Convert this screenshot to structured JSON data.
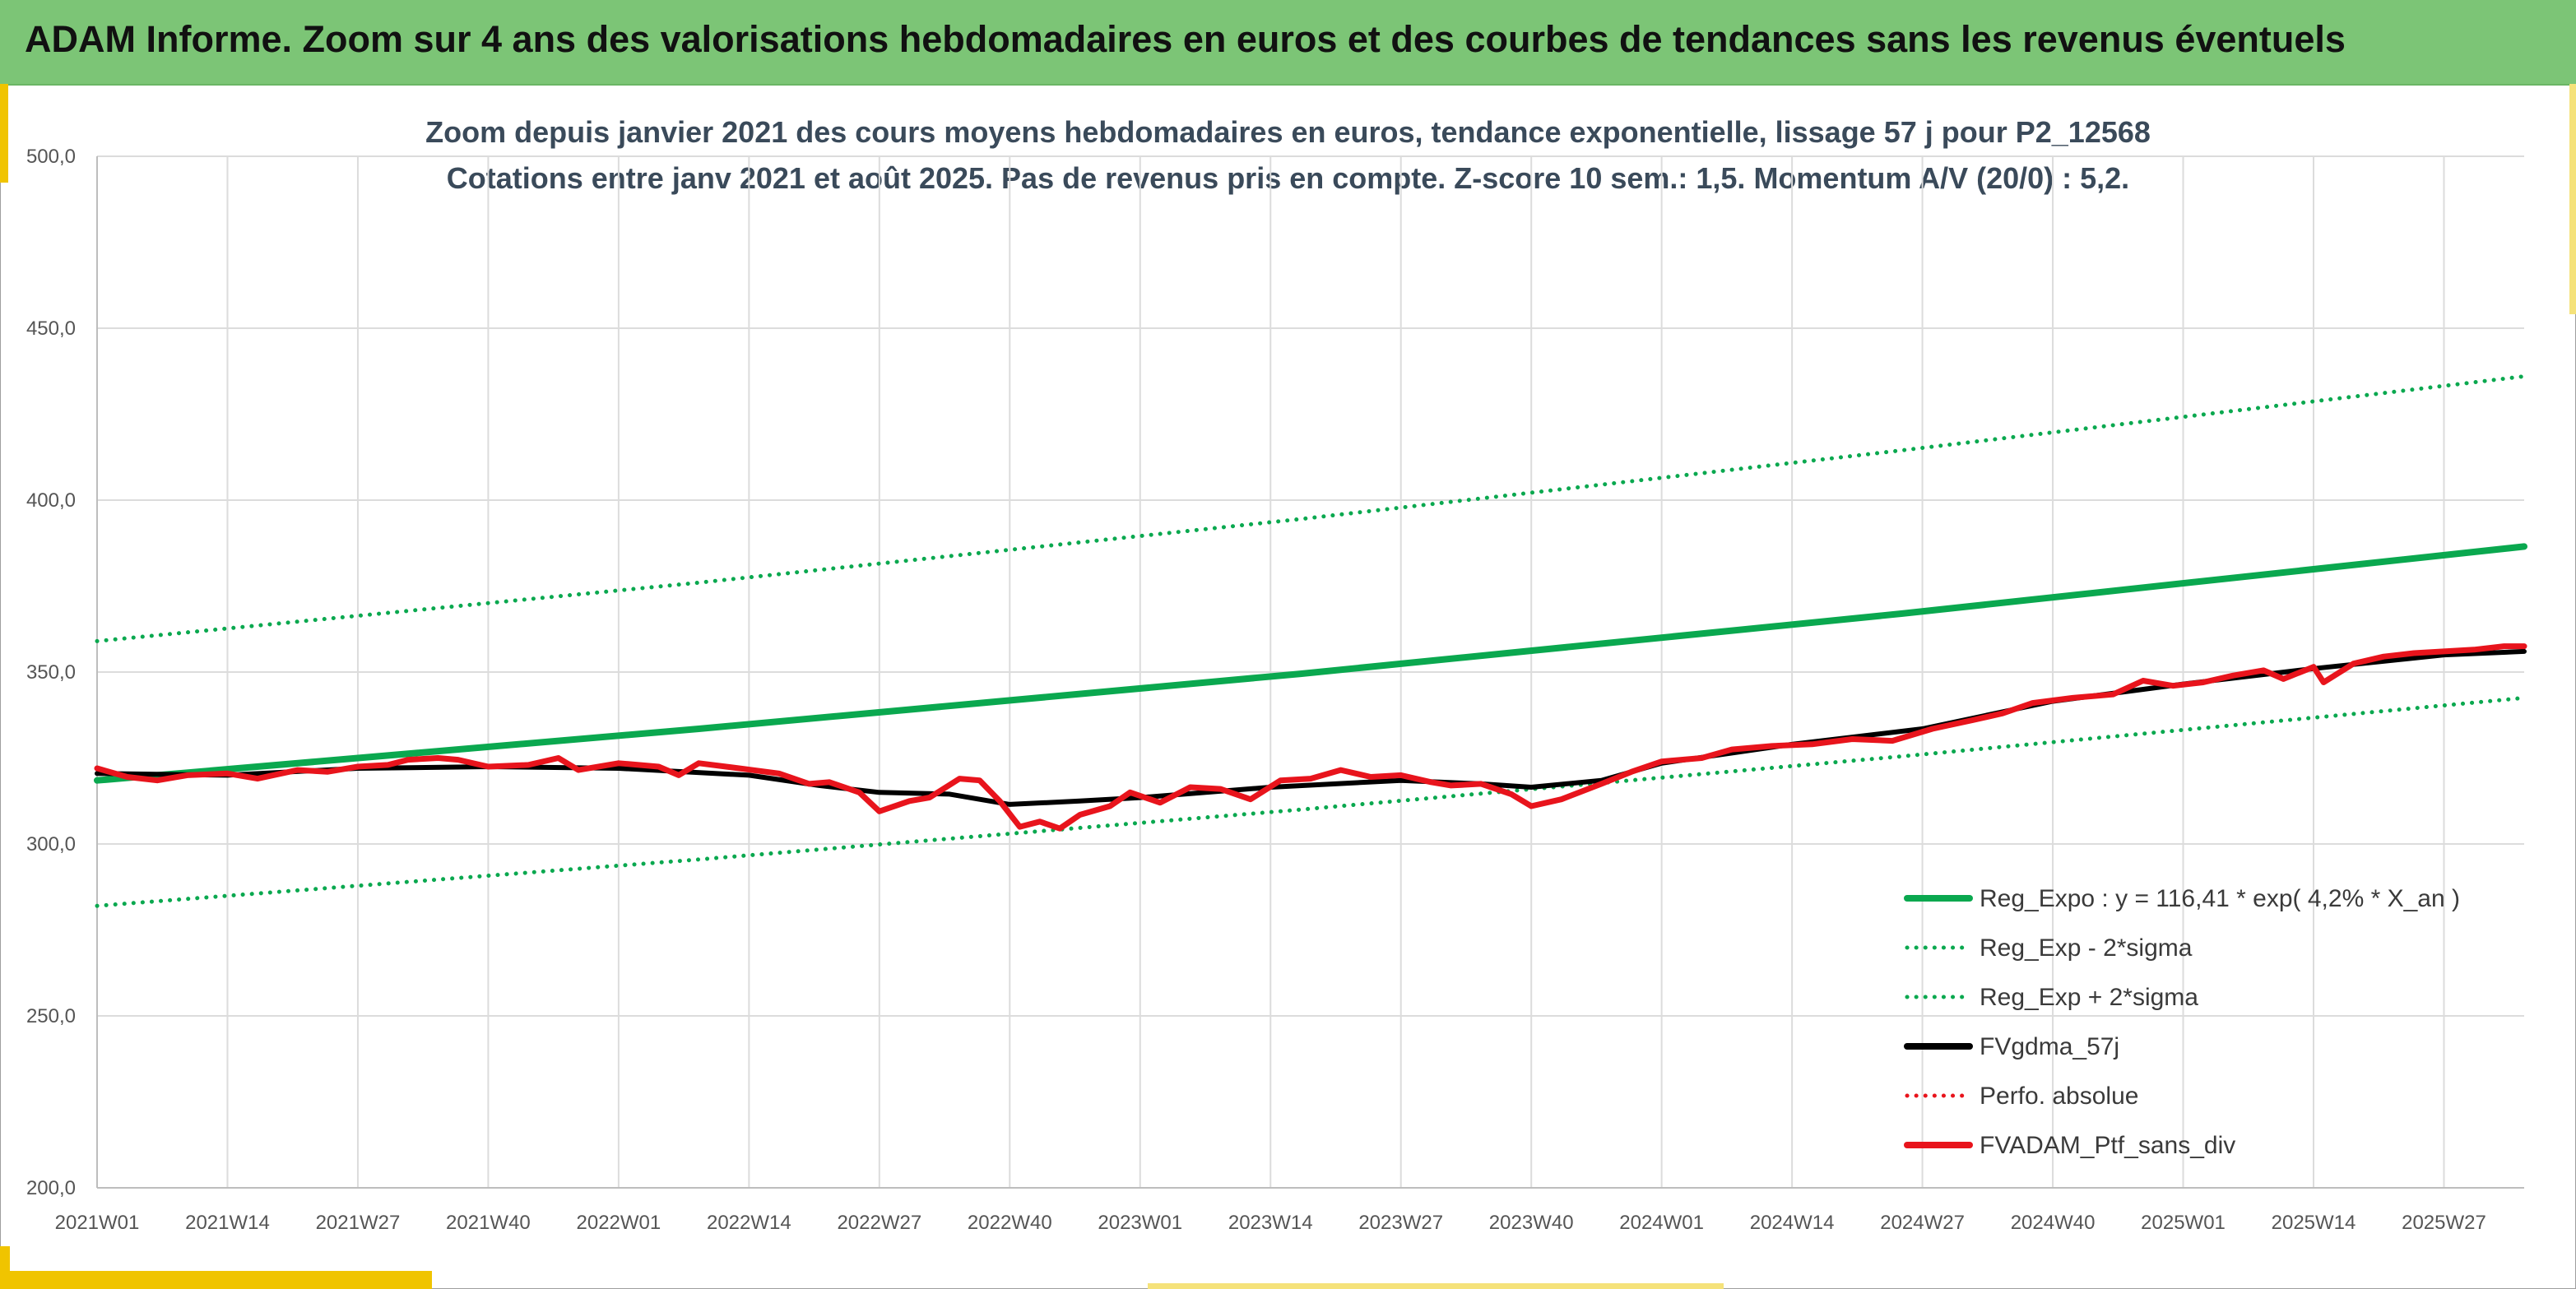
{
  "banner": {
    "title": "ADAM Informe. Zoom sur 4 ans des valorisations hebdomadaires en euros et des courbes de tendances sans les revenus éventuels"
  },
  "colors": {
    "banner": "#7cc576",
    "accent": "#f0c400",
    "green": "#0aa84f",
    "black": "#000000",
    "red": "#e8141c",
    "grid": "#dcdcdc"
  },
  "chart_data": {
    "type": "line",
    "title": "Zoom depuis janvier 2021 des cours moyens hebdomadaires en euros, tendance exponentielle, lissage 57 j pour P2_12568",
    "subtitle": "Cotations entre janv 2021 et août 2025. Pas de revenus pris en compte. Z-score 10 sem.: 1,5. Momentum A/V (20/0) : 5,2.",
    "x_tick_labels": [
      "2021W01",
      "2021W14",
      "2021W27",
      "2021W40",
      "2022W01",
      "2022W14",
      "2022W27",
      "2022W40",
      "2023W01",
      "2023W14",
      "2023W27",
      "2023W40",
      "2024W01",
      "2024W14",
      "2024W27",
      "2024W40",
      "2025W01",
      "2025W14",
      "2025W27"
    ],
    "x_tick_weeks": [
      0,
      13,
      26,
      39,
      52,
      65,
      78,
      91,
      104,
      117,
      130,
      143,
      156,
      169,
      182,
      195,
      208,
      221,
      234
    ],
    "x_range_weeks": [
      0,
      242
    ],
    "y_tick_labels": [
      "200,0",
      "250,0",
      "300,0",
      "350,0",
      "400,0",
      "450,0",
      "500,0"
    ],
    "ylim": [
      200,
      500
    ],
    "grid": true,
    "legend_position": "bottom-right",
    "series": [
      {
        "name": "Reg_Expo : y = 116,41 * exp( 4,2% *  X_an )",
        "color": "#0aa84f",
        "style": "solid",
        "points": [
          [
            0,
            318.5
          ],
          [
            60,
            333.5
          ],
          [
            120,
            349.5
          ],
          [
            180,
            367.0
          ],
          [
            242,
            386.5
          ]
        ]
      },
      {
        "name": "Reg_Exp - 2*sigma",
        "color": "#0aa84f",
        "style": "dotted",
        "points": [
          [
            0,
            282.0
          ],
          [
            60,
            295.5
          ],
          [
            120,
            310.0
          ],
          [
            180,
            325.5
          ],
          [
            242,
            342.5
          ]
        ]
      },
      {
        "name": "Reg_Exp + 2*sigma",
        "color": "#0aa84f",
        "style": "dotted",
        "points": [
          [
            0,
            359.0
          ],
          [
            60,
            376.0
          ],
          [
            120,
            394.5
          ],
          [
            180,
            414.5
          ],
          [
            242,
            436.0
          ]
        ]
      },
      {
        "name": "FVgdma_57j",
        "color": "#000000",
        "style": "solid",
        "points": [
          [
            0,
            320.5
          ],
          [
            13,
            320.0
          ],
          [
            26,
            322.0
          ],
          [
            39,
            322.5
          ],
          [
            52,
            322.0
          ],
          [
            65,
            320.0
          ],
          [
            72,
            317.0
          ],
          [
            78,
            315.0
          ],
          [
            85,
            314.5
          ],
          [
            91,
            311.5
          ],
          [
            98,
            312.5
          ],
          [
            104,
            313.5
          ],
          [
            117,
            316.5
          ],
          [
            130,
            318.5
          ],
          [
            138,
            317.5
          ],
          [
            143,
            316.5
          ],
          [
            150,
            318.5
          ],
          [
            156,
            323.5
          ],
          [
            169,
            329.0
          ],
          [
            182,
            333.5
          ],
          [
            195,
            341.5
          ],
          [
            208,
            346.5
          ],
          [
            221,
            351.0
          ],
          [
            234,
            355.0
          ],
          [
            242,
            356.0
          ]
        ]
      },
      {
        "name": "Perfo. absolue",
        "color": "#e8141c",
        "style": "dotted",
        "points": []
      },
      {
        "name": "FVADAM_Ptf_sans_div",
        "color": "#e8141c",
        "style": "solid",
        "points": [
          [
            0,
            322.0
          ],
          [
            3,
            319.5
          ],
          [
            6,
            318.5
          ],
          [
            9,
            320.0
          ],
          [
            13,
            320.5
          ],
          [
            16,
            319.0
          ],
          [
            20,
            321.5
          ],
          [
            23,
            321.0
          ],
          [
            26,
            322.5
          ],
          [
            29,
            323.0
          ],
          [
            31,
            324.5
          ],
          [
            34,
            325.0
          ],
          [
            36,
            324.5
          ],
          [
            39,
            322.5
          ],
          [
            43,
            323.0
          ],
          [
            46,
            325.0
          ],
          [
            48,
            321.5
          ],
          [
            52,
            323.5
          ],
          [
            56,
            322.5
          ],
          [
            58,
            320.0
          ],
          [
            60,
            323.5
          ],
          [
            64,
            322.0
          ],
          [
            68,
            320.5
          ],
          [
            71,
            317.5
          ],
          [
            73,
            318.0
          ],
          [
            76,
            315.0
          ],
          [
            78,
            309.5
          ],
          [
            81,
            312.5
          ],
          [
            83,
            313.5
          ],
          [
            86,
            319.0
          ],
          [
            88,
            318.5
          ],
          [
            90,
            312.5
          ],
          [
            92,
            305.0
          ],
          [
            94,
            306.5
          ],
          [
            96,
            304.5
          ],
          [
            98,
            308.5
          ],
          [
            101,
            311.0
          ],
          [
            103,
            315.0
          ],
          [
            106,
            312.0
          ],
          [
            109,
            316.5
          ],
          [
            112,
            316.0
          ],
          [
            115,
            313.0
          ],
          [
            118,
            318.5
          ],
          [
            121,
            319.0
          ],
          [
            124,
            321.5
          ],
          [
            127,
            319.5
          ],
          [
            130,
            320.0
          ],
          [
            133,
            318.0
          ],
          [
            135,
            317.0
          ],
          [
            138,
            317.5
          ],
          [
            141,
            314.5
          ],
          [
            143,
            311.0
          ],
          [
            146,
            313.0
          ],
          [
            150,
            317.5
          ],
          [
            153,
            321.0
          ],
          [
            156,
            324.0
          ],
          [
            160,
            325.0
          ],
          [
            163,
            327.5
          ],
          [
            167,
            328.5
          ],
          [
            171,
            329.0
          ],
          [
            175,
            330.5
          ],
          [
            179,
            330.0
          ],
          [
            183,
            333.5
          ],
          [
            187,
            336.0
          ],
          [
            190,
            338.0
          ],
          [
            193,
            341.0
          ],
          [
            197,
            342.5
          ],
          [
            201,
            343.5
          ],
          [
            204,
            347.5
          ],
          [
            207,
            346.0
          ],
          [
            210,
            347.0
          ],
          [
            213,
            349.0
          ],
          [
            216,
            350.5
          ],
          [
            218,
            348.0
          ],
          [
            221,
            351.5
          ],
          [
            222,
            347.0
          ],
          [
            225,
            352.5
          ],
          [
            228,
            354.5
          ],
          [
            231,
            355.5
          ],
          [
            234,
            356.0
          ],
          [
            237,
            356.5
          ],
          [
            240,
            357.5
          ],
          [
            242,
            357.5
          ]
        ]
      }
    ]
  }
}
